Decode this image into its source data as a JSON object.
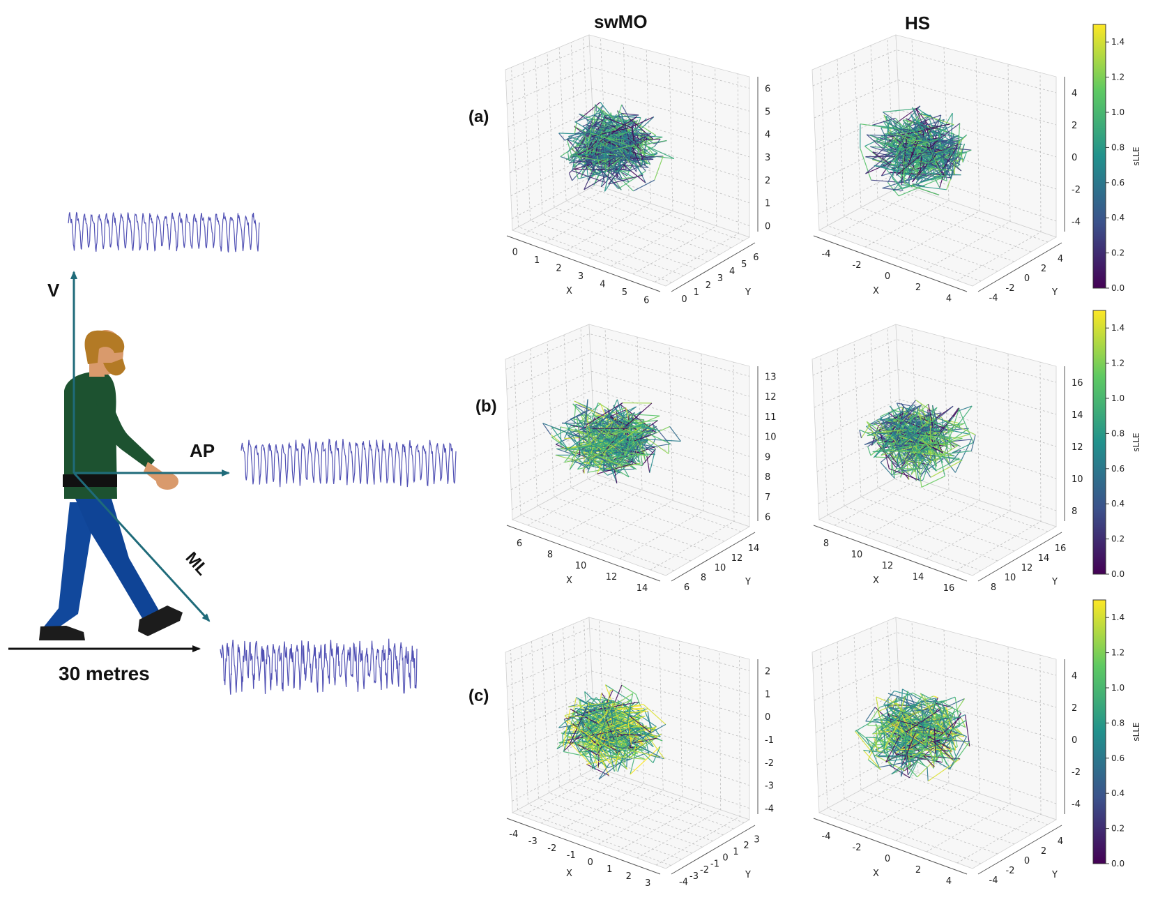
{
  "figure": {
    "column_titles": [
      "swMO",
      "HS"
    ],
    "row_labels": [
      "(a)",
      "(b)",
      "(c)"
    ],
    "axis_labels": {
      "v": "V",
      "ap": "AP",
      "ml": "ML"
    },
    "distance_label": "30 metres"
  },
  "colors": {
    "axis_teal": "#1f6b7a",
    "signal": "#5050b4",
    "shirt": "#1d5230",
    "trousers": "#11489c",
    "belt": "#111111",
    "skin": "#d99a6c",
    "hair": "#b37a25",
    "shoe": "#1c1c1c",
    "viridis": [
      "#440154",
      "#3b528b",
      "#21918c",
      "#5ec962",
      "#fde725"
    ]
  },
  "chart_data": [
    {
      "type": "line",
      "panel": "a",
      "subject": "swMO",
      "style": "3d-trajectory",
      "xlabel": "X",
      "ylabel": "Y",
      "zlabel": "",
      "x_ticks": [
        "0",
        "1",
        "2",
        "3",
        "4",
        "5",
        "6"
      ],
      "y_ticks": [
        "0",
        "1",
        "2",
        "3",
        "4",
        "5",
        "6"
      ],
      "z_ticks": [
        "0",
        "1",
        "2",
        "3",
        "4",
        "5",
        "6"
      ],
      "xlim": [
        0,
        6
      ],
      "ylim": [
        0,
        6
      ],
      "zlim": [
        0,
        6
      ],
      "color_range": [
        0.0,
        1.5
      ],
      "grid": true
    },
    {
      "type": "line",
      "panel": "a",
      "subject": "HS",
      "style": "3d-trajectory",
      "xlabel": "X",
      "ylabel": "Y",
      "zlabel": "",
      "x_ticks": [
        "-4",
        "-2",
        "0",
        "2",
        "4"
      ],
      "y_ticks": [
        "-4",
        "-2",
        "0",
        "2",
        "4"
      ],
      "z_ticks": [
        "-4",
        "-2",
        "0",
        "2",
        "4"
      ],
      "xlim": [
        -4,
        4
      ],
      "ylim": [
        -4,
        4
      ],
      "zlim": [
        -4,
        4
      ],
      "color_range": [
        0.0,
        1.5
      ],
      "grid": true
    },
    {
      "type": "line",
      "panel": "b",
      "subject": "swMO",
      "style": "3d-trajectory",
      "xlabel": "X",
      "ylabel": "Y",
      "zlabel": "",
      "x_ticks": [
        "6",
        "8",
        "10",
        "12",
        "14"
      ],
      "y_ticks": [
        "6",
        "8",
        "10",
        "12",
        "14"
      ],
      "z_ticks": [
        "6",
        "7",
        "8",
        "9",
        "10",
        "11",
        "12",
        "13"
      ],
      "xlim": [
        6,
        14
      ],
      "ylim": [
        6,
        14
      ],
      "zlim": [
        6,
        13
      ],
      "color_range": [
        0.0,
        1.5
      ],
      "grid": true
    },
    {
      "type": "line",
      "panel": "b",
      "subject": "HS",
      "style": "3d-trajectory",
      "xlabel": "X",
      "ylabel": "Y",
      "zlabel": "",
      "x_ticks": [
        "8",
        "10",
        "12",
        "14",
        "16"
      ],
      "y_ticks": [
        "8",
        "10",
        "12",
        "14",
        "16"
      ],
      "z_ticks": [
        "8",
        "10",
        "12",
        "14",
        "16"
      ],
      "xlim": [
        8,
        16
      ],
      "ylim": [
        8,
        16
      ],
      "zlim": [
        8,
        16
      ],
      "color_range": [
        0.0,
        1.5
      ],
      "grid": true
    },
    {
      "type": "line",
      "panel": "c",
      "subject": "swMO",
      "style": "3d-trajectory",
      "xlabel": "X",
      "ylabel": "Y",
      "zlabel": "",
      "x_ticks": [
        "-4",
        "-3",
        "-2",
        "-1",
        "0",
        "1",
        "2",
        "3"
      ],
      "y_ticks": [
        "-4",
        "-3",
        "-2",
        "-1",
        "0",
        "1",
        "2",
        "3"
      ],
      "z_ticks": [
        "-4",
        "-3",
        "-2",
        "-1",
        "0",
        "1",
        "2"
      ],
      "xlim": [
        -4,
        3
      ],
      "ylim": [
        -4,
        3
      ],
      "zlim": [
        -4,
        2
      ],
      "color_range": [
        0.0,
        1.5
      ],
      "grid": true
    },
    {
      "type": "line",
      "panel": "c",
      "subject": "HS",
      "style": "3d-trajectory",
      "xlabel": "X",
      "ylabel": "Y",
      "zlabel": "",
      "x_ticks": [
        "-4",
        "-2",
        "0",
        "2",
        "4"
      ],
      "y_ticks": [
        "-4",
        "-2",
        "0",
        "2",
        "4"
      ],
      "z_ticks": [
        "-4",
        "-2",
        "0",
        "2",
        "4"
      ],
      "xlim": [
        -4,
        4
      ],
      "ylim": [
        -4,
        4
      ],
      "zlim": [
        -4,
        4
      ],
      "color_range": [
        0.0,
        1.5
      ],
      "grid": true
    }
  ],
  "colorbars": [
    {
      "label": "sLLE",
      "range": [
        0.0,
        1.5
      ],
      "ticks": [
        "0.0",
        "0.2",
        "0.4",
        "0.6",
        "0.8",
        "1.0",
        "1.2",
        "1.4"
      ],
      "colormap": "viridis"
    },
    {
      "label": "sLLE",
      "range": [
        0.0,
        1.5
      ],
      "ticks": [
        "0.0",
        "0.2",
        "0.4",
        "0.6",
        "0.8",
        "1.0",
        "1.2",
        "1.4"
      ],
      "colormap": "viridis"
    },
    {
      "label": "sLLE",
      "range": [
        0.0,
        1.5
      ],
      "ticks": [
        "0.0",
        "0.2",
        "0.4",
        "0.6",
        "0.8",
        "1.0",
        "1.2",
        "1.4"
      ],
      "colormap": "viridis"
    }
  ]
}
